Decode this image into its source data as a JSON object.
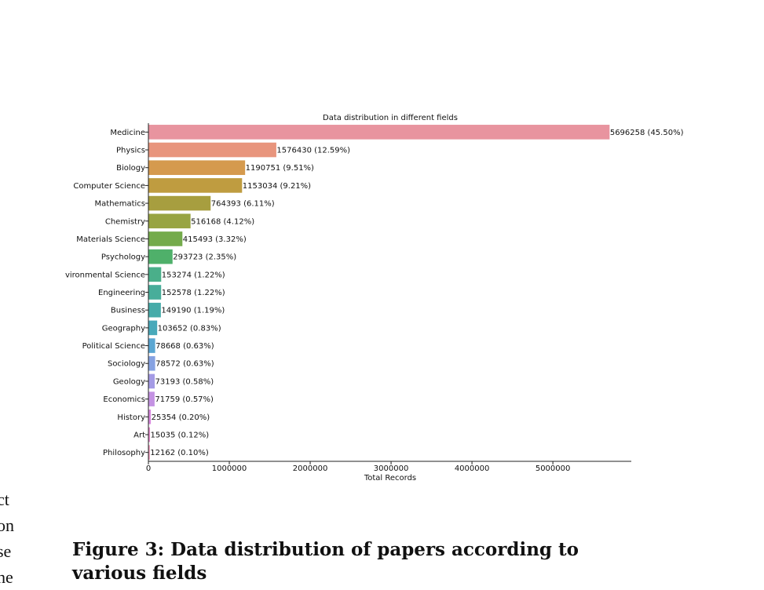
{
  "chart_data": {
    "type": "bar",
    "orientation": "horizontal",
    "title": "Data distribution in different fields",
    "xlabel": "Total Records",
    "ylabel": "",
    "xlim": [
      0,
      5969600
    ],
    "xticks": [
      0,
      1000000,
      2000000,
      3000000,
      4000000,
      5000000
    ],
    "xtick_labels": [
      "0",
      "1000000",
      "2000000",
      "3000000",
      "4000000",
      "5000000"
    ],
    "categories": [
      "Medicine",
      "Physics",
      "Biology",
      "Computer Science",
      "Mathematics",
      "Chemistry",
      "Materials Science",
      "Psychology",
      "Environmental Science",
      "Engineering",
      "Business",
      "Geography",
      "Political Science",
      "Sociology",
      "Geology",
      "Economics",
      "History",
      "Art",
      "Philosophy"
    ],
    "category_labels_shown": [
      "Medicine",
      "Physics",
      "Biology",
      "Computer Science",
      "Mathematics",
      "Chemistry",
      "Materials Science",
      "Psychology",
      "vironmental Science",
      "Engineering",
      "Business",
      "Geography",
      "Political Science",
      "Sociology",
      "Geology",
      "Economics",
      "History",
      "Art",
      "Philosophy"
    ],
    "values": [
      5696258,
      1576430,
      1190751,
      1153034,
      764393,
      516168,
      415493,
      293723,
      153274,
      152578,
      149190,
      103652,
      78668,
      78572,
      73193,
      71759,
      25354,
      15035,
      12162
    ],
    "data_labels": [
      "5696258 (45.50%)",
      "1576430 (12.59%)",
      "1190751 (9.51%)",
      "1153034 (9.21%)",
      "764393 (6.11%)",
      "516168 (4.12%)",
      "415493 (3.32%)",
      "293723 (2.35%)",
      "153274 (1.22%)",
      "152578 (1.22%)",
      "149190 (1.19%)",
      "103652 (0.83%)",
      "78668 (0.63%)",
      "78572 (0.63%)",
      "73193 (0.58%)",
      "71759 (0.57%)",
      "25354 (0.20%)",
      "15035 (0.12%)",
      "12162 (0.10%)"
    ],
    "colors": [
      "#e8949f",
      "#e8957d",
      "#d59a4e",
      "#bf9c40",
      "#a79e3f",
      "#98a442",
      "#74ab4b",
      "#4fb06a",
      "#4aaf8a",
      "#48ad9a",
      "#46aba9",
      "#48a9ba",
      "#5aa6d2",
      "#86a2e2",
      "#a49be5",
      "#c492e3",
      "#d888dd",
      "#e48acb",
      "#e88eb3"
    ],
    "grid": false
  },
  "caption": "Figure 3: Data distribution of papers according to various fields",
  "left_fragments": [
    "ct",
    "on",
    "se",
    "he"
  ]
}
